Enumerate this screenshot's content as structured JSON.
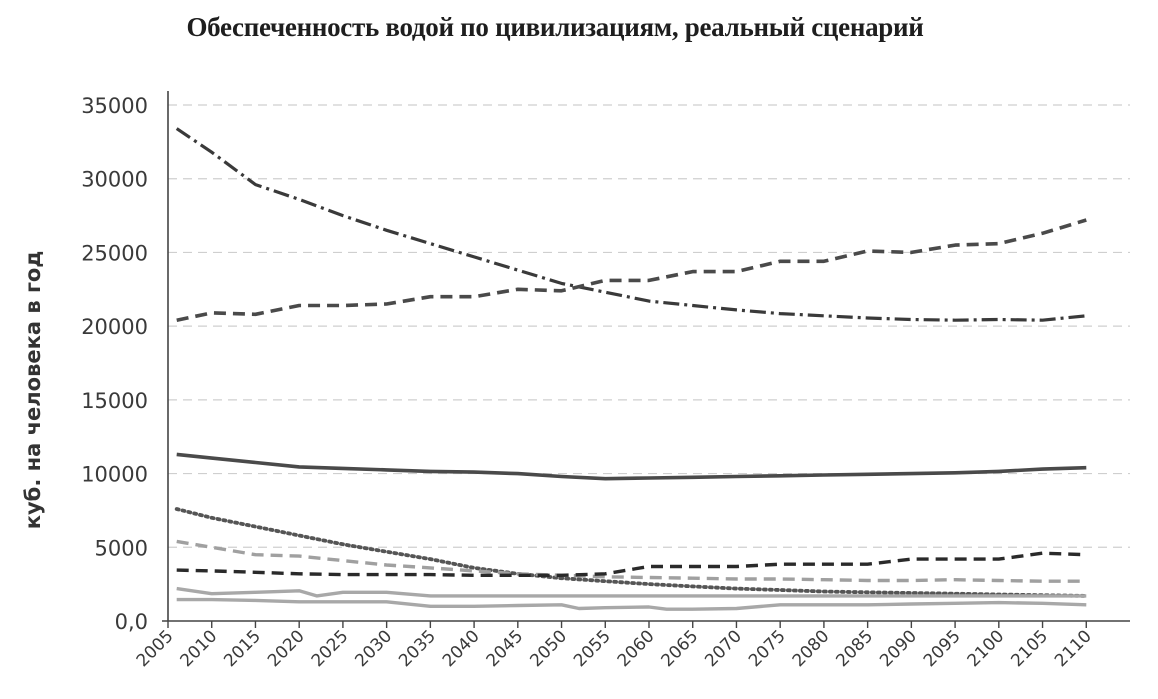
{
  "chart_data": {
    "type": "line",
    "title": "Обеспеченность водой по цивилизациям, реальный сценарий",
    "xlabel": "",
    "ylabel": "куб. на человека в год",
    "xlim": [
      2005,
      2115
    ],
    "ylim": [
      0,
      35000
    ],
    "x_ticks": [
      "2005",
      "2010",
      "2015",
      "2020",
      "2025",
      "2030",
      "2035",
      "2040",
      "2045",
      "2050",
      "2055",
      "2060",
      "2065",
      "2070",
      "2075",
      "2080",
      "2085",
      "2090",
      "2095",
      "2100",
      "2105",
      "2110"
    ],
    "y_ticks": [
      {
        "value": 0,
        "label": "0,0"
      },
      {
        "value": 5000,
        "label": "5000"
      },
      {
        "value": 10000,
        "label": "10000"
      },
      {
        "value": 15000,
        "label": "15000"
      },
      {
        "value": 20000,
        "label": "20000"
      },
      {
        "value": 25000,
        "label": "25000"
      },
      {
        "value": 30000,
        "label": "30000"
      },
      {
        "value": 35000,
        "label": "35000"
      }
    ],
    "grid": true,
    "legend": "none",
    "series": [
      {
        "style": "dash-dot",
        "color": "#3a3a3a",
        "width": 3.2,
        "x": [
          2006,
          2010,
          2015,
          2020,
          2025,
          2030,
          2035,
          2040,
          2045,
          2050,
          2055,
          2060,
          2065,
          2070,
          2075,
          2080,
          2085,
          2090,
          2095,
          2100,
          2105,
          2110
        ],
        "values": [
          33400,
          31800,
          29600,
          28600,
          27500,
          26500,
          25600,
          24700,
          23800,
          22900,
          22300,
          21700,
          21400,
          21100,
          20850,
          20700,
          20550,
          20450,
          20400,
          20450,
          20400,
          20700
        ]
      },
      {
        "style": "dashed",
        "color": "#4a4a4a",
        "width": 3.6,
        "x": [
          2006,
          2010,
          2015,
          2020,
          2025,
          2030,
          2035,
          2040,
          2045,
          2050,
          2055,
          2060,
          2065,
          2070,
          2075,
          2080,
          2085,
          2090,
          2095,
          2100,
          2105,
          2110
        ],
        "values": [
          20400,
          20900,
          20800,
          21400,
          21400,
          21500,
          22000,
          22000,
          22500,
          22400,
          23100,
          23100,
          23700,
          23700,
          24400,
          24400,
          25100,
          25000,
          25500,
          25600,
          26300,
          27200
        ]
      },
      {
        "style": "solid",
        "color": "#4a4a4a",
        "width": 3.6,
        "x": [
          2006,
          2010,
          2015,
          2020,
          2025,
          2030,
          2035,
          2040,
          2045,
          2050,
          2055,
          2060,
          2065,
          2070,
          2075,
          2080,
          2085,
          2090,
          2095,
          2100,
          2105,
          2110
        ],
        "values": [
          11300,
          11050,
          10750,
          10450,
          10350,
          10250,
          10150,
          10100,
          10000,
          9800,
          9650,
          9700,
          9750,
          9800,
          9850,
          9900,
          9950,
          10000,
          10050,
          10150,
          10300,
          10400
        ]
      },
      {
        "style": "dotted",
        "color": "#555555",
        "width": 3.8,
        "x": [
          2006,
          2010,
          2015,
          2020,
          2025,
          2030,
          2035,
          2040,
          2045,
          2050,
          2055,
          2060,
          2065,
          2070,
          2075,
          2080,
          2085,
          2090,
          2095,
          2100,
          2105,
          2110
        ],
        "values": [
          7600,
          7000,
          6400,
          5800,
          5200,
          4700,
          4200,
          3600,
          3200,
          2900,
          2700,
          2500,
          2350,
          2200,
          2100,
          2000,
          1950,
          1900,
          1850,
          1800,
          1750,
          1700
        ]
      },
      {
        "style": "dashed",
        "color": "#a0a0a0",
        "width": 3.4,
        "x": [
          2006,
          2010,
          2015,
          2020,
          2025,
          2030,
          2035,
          2040,
          2045,
          2050,
          2055,
          2060,
          2065,
          2070,
          2075,
          2080,
          2085,
          2090,
          2095,
          2100,
          2105,
          2110
        ],
        "values": [
          5400,
          5000,
          4500,
          4400,
          4100,
          3800,
          3600,
          3400,
          3200,
          3100,
          3000,
          2950,
          2900,
          2850,
          2850,
          2800,
          2750,
          2750,
          2800,
          2750,
          2700,
          2700
        ]
      },
      {
        "style": "dashed",
        "color": "#2a2a2a",
        "width": 3.4,
        "x": [
          2006,
          2010,
          2015,
          2020,
          2025,
          2030,
          2035,
          2040,
          2045,
          2050,
          2055,
          2060,
          2065,
          2070,
          2075,
          2080,
          2085,
          2090,
          2095,
          2100,
          2105,
          2110
        ],
        "values": [
          3450,
          3400,
          3300,
          3200,
          3150,
          3150,
          3150,
          3100,
          3100,
          3100,
          3200,
          3700,
          3700,
          3700,
          3850,
          3850,
          3850,
          4200,
          4200,
          4200,
          4600,
          4500
        ]
      },
      {
        "style": "solid",
        "color": "#a8a8a8",
        "width": 3.4,
        "x": [
          2006,
          2010,
          2015,
          2020,
          2022,
          2025,
          2030,
          2035,
          2040,
          2045,
          2050,
          2055,
          2060,
          2065,
          2070,
          2075,
          2080,
          2085,
          2090,
          2095,
          2100,
          2105,
          2110
        ],
        "values": [
          2200,
          1850,
          1950,
          2050,
          1700,
          1950,
          1950,
          1700,
          1700,
          1700,
          1700,
          1700,
          1700,
          1700,
          1700,
          1700,
          1700,
          1700,
          1700,
          1700,
          1700,
          1700,
          1700
        ]
      },
      {
        "style": "solid",
        "color": "#a8a8a8",
        "width": 3.4,
        "x": [
          2006,
          2010,
          2015,
          2020,
          2025,
          2030,
          2035,
          2040,
          2045,
          2050,
          2052,
          2055,
          2060,
          2062,
          2065,
          2070,
          2075,
          2080,
          2085,
          2090,
          2095,
          2100,
          2105,
          2110
        ],
        "values": [
          1450,
          1450,
          1400,
          1300,
          1300,
          1300,
          1000,
          1000,
          1050,
          1100,
          850,
          900,
          950,
          800,
          800,
          850,
          1100,
          1100,
          1100,
          1150,
          1200,
          1250,
          1200,
          1100
        ]
      }
    ]
  }
}
